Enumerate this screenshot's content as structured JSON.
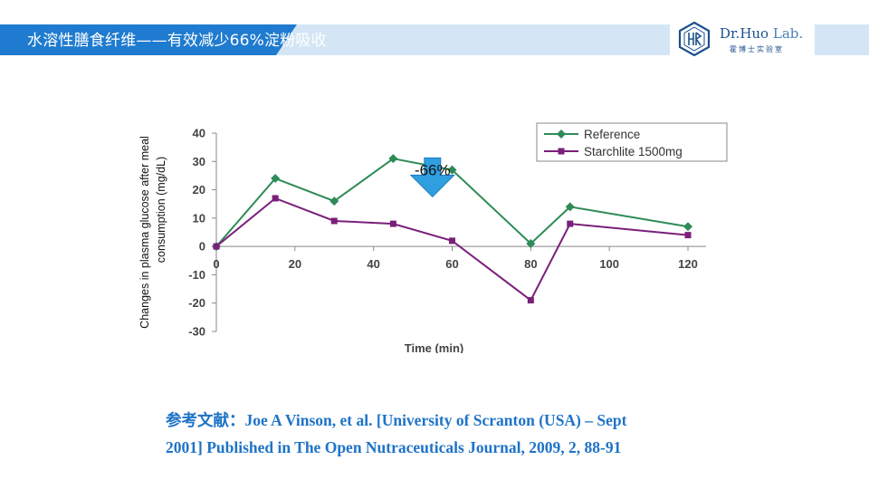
{
  "header": {
    "title": "水溶性膳食纤维——有效减少66%淀粉吸收"
  },
  "logo": {
    "name_main": "Dr.Huo",
    "name_lab": " Lab.",
    "subtitle": "霍博士实验室",
    "icon": "hexagon-logo-icon"
  },
  "colors": {
    "header_dark": "#1f7bcf",
    "header_light": "#d4e6f5",
    "reference_series": "#2e8b57",
    "starchlite_series": "#7a1f7a",
    "arrow": "#2f9fe0",
    "reference_text": "#1e73c6"
  },
  "chart_data": {
    "type": "line",
    "xlabel": "Time (min)",
    "ylabel": "Changes in plasma glucose after meal consumption (mg/dL)",
    "xlim": [
      0,
      120
    ],
    "ylim": [
      -30,
      40
    ],
    "xticks": [
      "0",
      "20",
      "40",
      "60",
      "80",
      "100",
      "120"
    ],
    "yticks": [
      "40",
      "30",
      "20",
      "10",
      "0",
      "-10",
      "-20",
      "-30"
    ],
    "legend_position": "top-right",
    "series": [
      {
        "name": "Reference",
        "color": "#2e8b57",
        "marker": "diamond",
        "x": [
          0,
          15,
          30,
          45,
          60,
          80,
          90,
          120
        ],
        "y": [
          0,
          24,
          16,
          31,
          27,
          1,
          14,
          7
        ]
      },
      {
        "name": "Starchlite 1500mg",
        "color": "#7a1f7a",
        "marker": "square",
        "x": [
          0,
          15,
          30,
          45,
          60,
          80,
          90,
          120
        ],
        "y": [
          0,
          17,
          9,
          8,
          2,
          -19,
          8,
          4
        ]
      }
    ],
    "annotations": [
      {
        "text": "-66%",
        "x": 55,
        "y": 22,
        "icon": "down-arrow-icon"
      }
    ]
  },
  "reference": {
    "line1": "参考文献：Joe A Vinson,  et al. [University  of Scranton  (USA) – Sept",
    "line2": "2001] Published  in The Open Nutraceuticals  Journal,  2009, 2, 88-91"
  }
}
